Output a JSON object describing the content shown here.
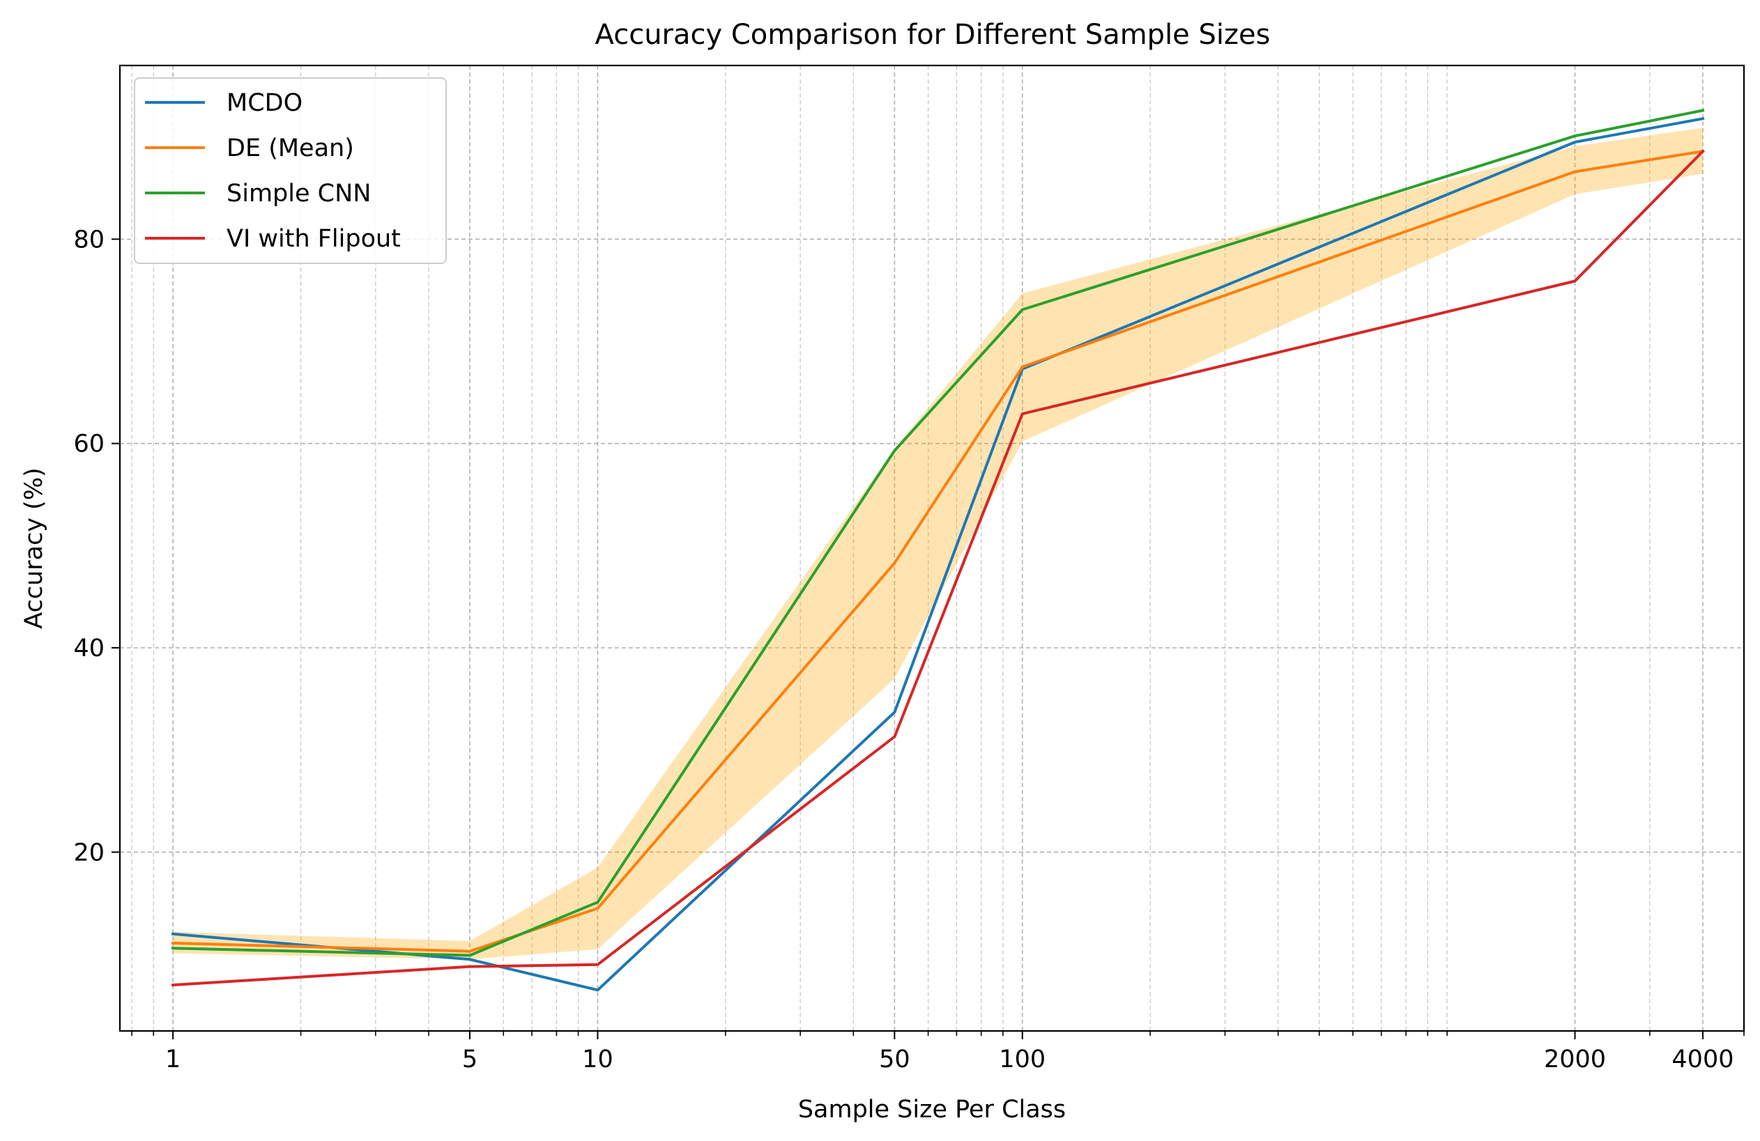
{
  "chart_data": {
    "type": "line",
    "title": "Accuracy Comparison for Different Sample Sizes",
    "xlabel": "Sample Size Per Class",
    "ylabel": "Accuracy (%)",
    "x_scale": "log",
    "xlim": [
      0.75,
      5000
    ],
    "ylim": [
      2.5,
      97
    ],
    "x": [
      1,
      5,
      10,
      50,
      100,
      2000,
      4000
    ],
    "x_ticks": [
      1,
      5,
      10,
      50,
      100,
      2000,
      4000
    ],
    "x_tick_labels": [
      "1",
      "5",
      "10",
      "50",
      "100",
      "2000",
      "4000"
    ],
    "y_ticks": [
      20,
      40,
      60,
      80
    ],
    "y_tick_labels": [
      "20",
      "40",
      "60",
      "80"
    ],
    "grid": true,
    "legend_position": "top-left",
    "series": [
      {
        "name": "MCDO",
        "color": "#1f77b4",
        "values": [
          12.0,
          9.5,
          6.5,
          33.7,
          67.3,
          89.5,
          91.8
        ]
      },
      {
        "name": "DE (Mean)",
        "color": "#ff7f0e",
        "values": [
          11.1,
          10.3,
          14.5,
          48.3,
          67.5,
          86.6,
          88.6
        ]
      },
      {
        "name": "Simple CNN",
        "color": "#2ca02c",
        "values": [
          10.6,
          9.9,
          15.1,
          59.3,
          73.1,
          90.1,
          92.6
        ]
      },
      {
        "name": "VI with Flipout",
        "color": "#d62728",
        "values": [
          7.0,
          8.8,
          9.0,
          31.3,
          62.9,
          75.9,
          88.6
        ]
      }
    ],
    "band": {
      "series": "DE (Mean)",
      "color": "#ffa500",
      "opacity": 0.3,
      "lower": [
        10.1,
        9.5,
        10.5,
        37.0,
        60.2,
        84.4,
        86.4
      ],
      "upper": [
        12.2,
        11.3,
        18.5,
        59.5,
        74.7,
        89.1,
        90.9
      ]
    }
  }
}
